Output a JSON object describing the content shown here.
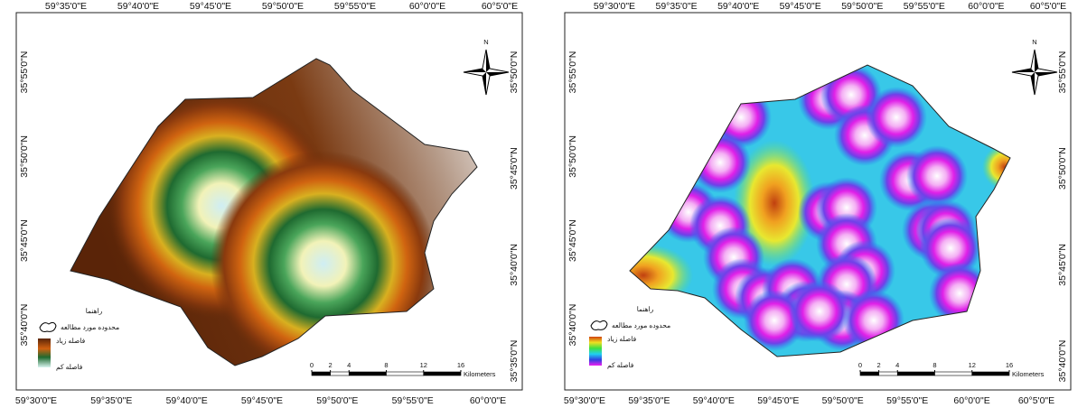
{
  "maps": [
    {
      "top_labels": [
        "59°35'0\"E",
        "59°40'0\"E",
        "59°45'0\"E",
        "59°50'0\"E",
        "59°55'0\"E",
        "60°0'0\"E",
        "60°5'0\"E"
      ],
      "bottom_labels": [
        "59°30'0\"E",
        "59°35'0\"E",
        "59°40'0\"E",
        "59°45'0\"E",
        "59°50'0\"E",
        "59°55'0\"E",
        "60°0'0\"E"
      ],
      "left_labels": [
        "35°55'0\"N",
        "35°50'0\"N",
        "35°45'0\"N",
        "35°40'0\"N"
      ],
      "right_labels": [
        "35°50'0\"N",
        "35°45'0\"N",
        "35°40'0\"N",
        "35°35'0\"N"
      ],
      "north": "N",
      "legend": {
        "title": "راهنما",
        "boundary": "محدوده مورد مطالعه",
        "high": "فاصله زیاد",
        "low": "فاصله کم"
      },
      "scale": {
        "ticks": [
          0,
          2,
          4,
          8,
          12,
          16
        ],
        "unit": "Kilometers"
      }
    },
    {
      "top_labels": [
        "59°30'0\"E",
        "59°35'0\"E",
        "59°40'0\"E",
        "59°45'0\"E",
        "59°50'0\"E",
        "59°55'0\"E",
        "60°0'0\"E",
        "60°5'0\"E"
      ],
      "bottom_labels": [
        "59°30'0\"E",
        "59°35'0\"E",
        "59°40'0\"E",
        "59°45'0\"E",
        "59°50'0\"E",
        "59°55'0\"E",
        "60°0'0\"E",
        "60°5'0\"E"
      ],
      "left_labels": [
        "35°55'0\"N",
        "35°50'0\"N",
        "35°45'0\"N",
        "35°40'0\"N"
      ],
      "right_labels": [
        "35°55'0\"N",
        "35°50'0\"N",
        "35°45'0\"N",
        "35°40'0\"N"
      ],
      "north": "N",
      "legend": {
        "title": "راهنما",
        "boundary": "محدوده مورد مطالعه",
        "high": "فاصله زیاد",
        "low": "فاصله کم"
      },
      "scale": {
        "ticks": [
          0,
          2,
          4,
          8,
          12,
          16
        ],
        "unit": "Kilometers"
      }
    }
  ]
}
